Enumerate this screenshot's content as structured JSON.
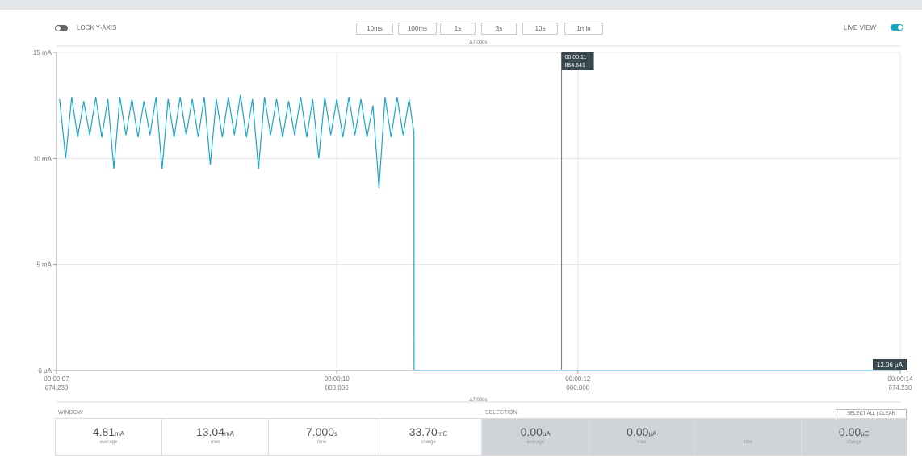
{
  "toolbar": {
    "lock_label": "LOCK Y-AXIS",
    "buttons": [
      "10ms",
      "100ms",
      "1s",
      "3s",
      "10s",
      "1min"
    ],
    "live_label": "LIVE VIEW"
  },
  "chart": {
    "type": "line",
    "delta_top": "Δ7.000s",
    "delta_bottom": "Δ7.000s",
    "ylim": [
      0,
      15
    ],
    "yticks": [
      {
        "value": 0,
        "label": "0 µA"
      },
      {
        "value": 5,
        "label": "5 mA"
      },
      {
        "value": 10,
        "label": "10 mA"
      },
      {
        "value": 15,
        "label": "15 mA"
      }
    ],
    "xlim": [
      7.67423,
      14.67423
    ],
    "xticks": [
      {
        "value": 7.67423,
        "label": "00:00:07",
        "sublabel": "674.230"
      },
      {
        "value": 10,
        "label": "00:00:10",
        "sublabel": "000.000"
      },
      {
        "value": 12,
        "label": "00:00:12",
        "sublabel": "000.000"
      },
      {
        "value": 14.67423,
        "label": "00:00:14",
        "sublabel": "674.230"
      }
    ],
    "grid": true,
    "series": [
      {
        "color": "#1aa7c4",
        "x": [
          7.7,
          7.75,
          7.8,
          7.85,
          7.9,
          7.95,
          8.0,
          8.05,
          8.1,
          8.15,
          8.2,
          8.25,
          8.3,
          8.35,
          8.4,
          8.45,
          8.5,
          8.55,
          8.6,
          8.65,
          8.7,
          8.75,
          8.8,
          8.85,
          8.9,
          8.95,
          9.0,
          9.05,
          9.1,
          9.15,
          9.2,
          9.25,
          9.3,
          9.35,
          9.4,
          9.45,
          9.5,
          9.55,
          9.6,
          9.65,
          9.7,
          9.75,
          9.8,
          9.85,
          9.9,
          9.95,
          10.0,
          10.05,
          10.1,
          10.15,
          10.2,
          10.25,
          10.3,
          10.35,
          10.4,
          10.45,
          10.5,
          10.55,
          10.6,
          10.64,
          10.641,
          14.674
        ],
        "values": [
          12.8,
          10.0,
          12.9,
          11.0,
          12.7,
          11.1,
          12.9,
          11.0,
          12.8,
          9.5,
          12.9,
          11.1,
          12.8,
          11.0,
          12.7,
          11.1,
          12.9,
          9.5,
          12.8,
          11.0,
          12.9,
          11.1,
          12.8,
          11.0,
          12.9,
          9.7,
          12.8,
          11.0,
          12.9,
          11.1,
          13.0,
          11.0,
          12.8,
          9.5,
          12.9,
          11.1,
          12.8,
          11.0,
          12.7,
          11.1,
          12.9,
          11.0,
          12.8,
          10.0,
          12.9,
          11.1,
          12.8,
          11.0,
          12.9,
          11.1,
          12.8,
          11.0,
          12.5,
          8.6,
          12.9,
          11.0,
          12.9,
          11.1,
          12.8,
          11.2,
          0.012,
          0.012
        ]
      }
    ],
    "cursor": {
      "x": 11.864641,
      "label": "00:00:11",
      "sublabel": "864.641"
    },
    "end_label": "12.06 µA"
  },
  "window": {
    "title": "WINDOW",
    "stats": [
      {
        "value": "4.81",
        "unit": "mA",
        "label": "average"
      },
      {
        "value": "13.04",
        "unit": "mA",
        "label": "max"
      },
      {
        "value": "7.000",
        "unit": "s",
        "label": "time"
      },
      {
        "value": "33.70",
        "unit": "mC",
        "label": "charge"
      }
    ]
  },
  "selection": {
    "title": "SELECTION",
    "buttons": [
      "SELECT ALL",
      "CLEAR"
    ],
    "stats": [
      {
        "value": "0.00",
        "unit": "µA",
        "label": "average"
      },
      {
        "value": "0.00",
        "unit": "µA",
        "label": "max"
      },
      {
        "label": "time"
      },
      {
        "value": "0.00",
        "unit": "µC",
        "label": "charge"
      }
    ]
  }
}
